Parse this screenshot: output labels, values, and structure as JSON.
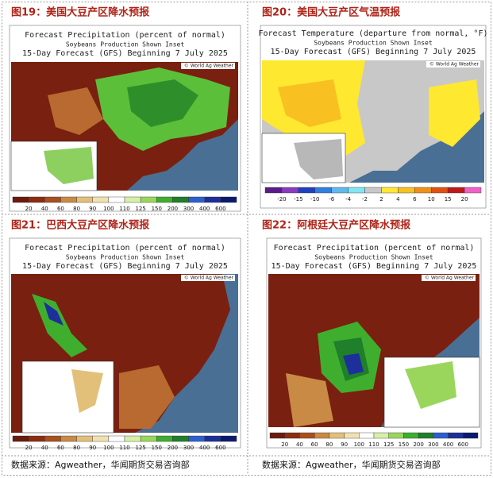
{
  "panels": [
    {
      "caption": "图19：美国大豆产区降水预报",
      "title": "Forecast Precipitation (percent of normal)",
      "subtitle": "Soybeans Production Shown Inset",
      "forecast": "15-Day Forecast (GFS) Beginning 7 July 2025",
      "watermark": "© World Ag Weather",
      "legend_ticks": [
        20,
        40,
        60,
        80,
        90,
        100,
        110,
        125,
        150,
        200,
        300,
        400,
        600
      ],
      "legend_colors": [
        "#6b1a0e",
        "#8c2d12",
        "#a8501e",
        "#c98a45",
        "#e3c07a",
        "#f1e1b0",
        "#ffffff",
        "#d6f0a8",
        "#9ad65c",
        "#3fae2e",
        "#1f7f2a",
        "#2d5fd0",
        "#1d2f9a",
        "#0a1a6e"
      ]
    },
    {
      "caption": "图20：美国大豆产区气温预报",
      "title": "Forecast Temperature (departure from normal, °F)",
      "subtitle": "Soybeans Production Shown Inset",
      "forecast": "15-Day Forecast (GFS) Beginning 7 July 2025",
      "watermark": "© World Ag Weather",
      "legend_ticks": [
        -20,
        -15,
        -10,
        -6,
        -4,
        -2,
        2,
        4,
        6,
        10,
        15,
        20
      ],
      "legend_colors": [
        "#5a1a8a",
        "#8a3ac0",
        "#2040c0",
        "#2f7fe0",
        "#5fb8f0",
        "#7fe6f2",
        "#c8c8c8",
        "#ffe830",
        "#f8c020",
        "#f09018",
        "#e05010",
        "#c01818",
        "#f060c8"
      ]
    },
    {
      "caption": "图21：巴西大豆产区降水预报",
      "title": "Forecast Precipitation (percent of normal)",
      "subtitle": "Soybeans Production Shown Inset",
      "forecast": "15-Day Forecast (GFS) Beginning 7 July 2025",
      "watermark": "© World Ag Weather",
      "legend_ticks": [
        20,
        40,
        60,
        80,
        90,
        100,
        110,
        125,
        150,
        200,
        300,
        400,
        600
      ],
      "legend_colors": [
        "#6b1a0e",
        "#8c2d12",
        "#a8501e",
        "#c98a45",
        "#e3c07a",
        "#f1e1b0",
        "#ffffff",
        "#d6f0a8",
        "#9ad65c",
        "#3fae2e",
        "#1f7f2a",
        "#2d5fd0",
        "#1d2f9a",
        "#0a1a6e"
      ]
    },
    {
      "caption": "图22：阿根廷大豆产区降水预报",
      "title": "Forecast Precipitation (percent of normal)",
      "subtitle": "Soybeans Production Shown Inset",
      "forecast": "15-Day Forecast (GFS) Beginning 7 July 2025",
      "watermark": "© World Ag Weather",
      "legend_ticks": [
        20,
        40,
        60,
        80,
        90,
        100,
        110,
        125,
        150,
        200,
        300,
        400,
        600
      ],
      "legend_colors": [
        "#6b1a0e",
        "#8c2d12",
        "#a8501e",
        "#c98a45",
        "#e3c07a",
        "#f1e1b0",
        "#ffffff",
        "#d6f0a8",
        "#9ad65c",
        "#3fae2e",
        "#1f7f2a",
        "#2d5fd0",
        "#1d2f9a",
        "#0a1a6e"
      ]
    }
  ],
  "footer": {
    "left": "数据来源：Agweather，华闻期货交易咨询部",
    "right": "数据来源：Agweather，华闻期货交易咨询部"
  }
}
